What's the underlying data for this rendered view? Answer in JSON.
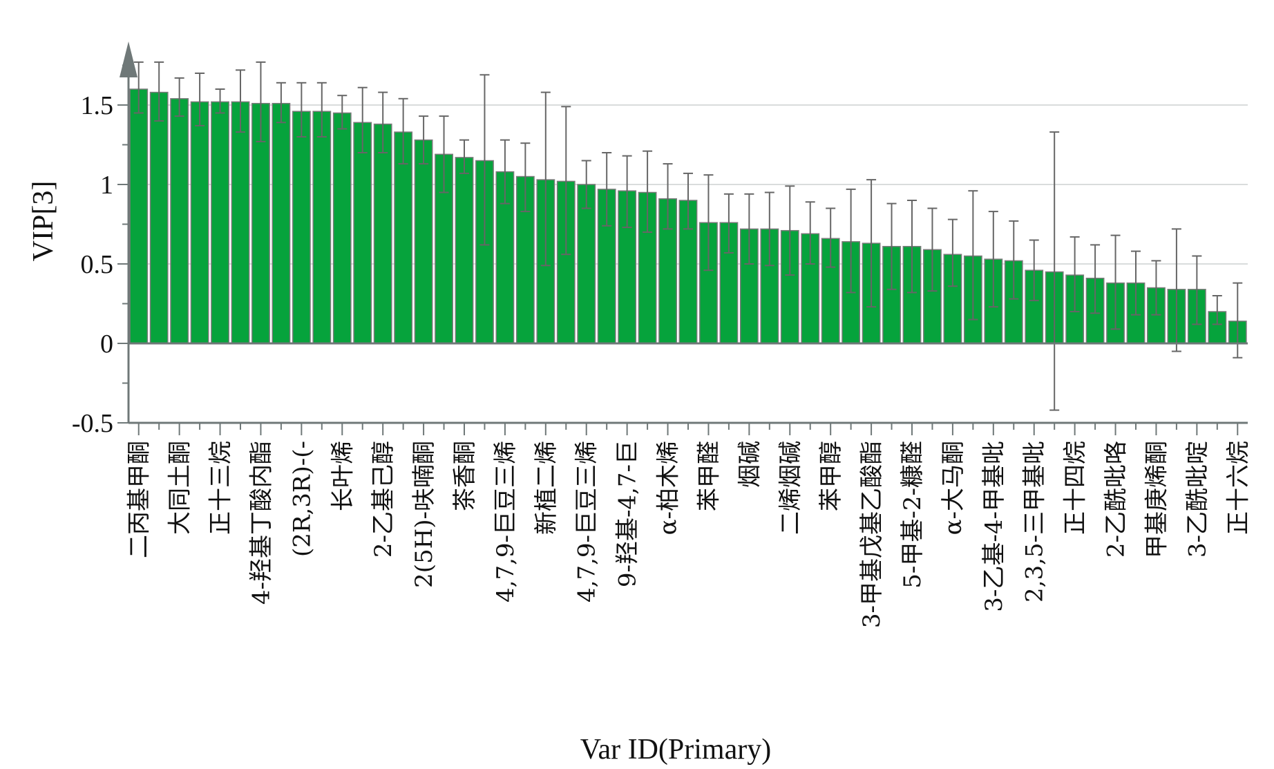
{
  "chart_data": {
    "type": "bar",
    "title": "",
    "xlabel": "Var ID(Primary)",
    "ylabel": "VIP[3]",
    "ylim": [
      -0.5,
      1.9
    ],
    "yticks": [
      -0.5,
      0,
      0.5,
      1,
      1.5
    ],
    "ytick_labels": [
      "-0.5",
      "0",
      "0.5",
      "1",
      "1.5"
    ],
    "grid": "horizontal",
    "bar_color": "#06a33c",
    "bar_edge_color": "#7a7a7a",
    "error_bar_color": "#666666",
    "categories": [
      "c1",
      "c2",
      "c3",
      "c4",
      "c5",
      "c6",
      "c7",
      "c8",
      "c9",
      "c10",
      "c11",
      "c12",
      "c13",
      "c14",
      "c15",
      "c16",
      "c17",
      "c18",
      "c19",
      "c20",
      "c21",
      "c22",
      "c23",
      "c24",
      "c25",
      "c26",
      "c27",
      "c28",
      "c29",
      "c30",
      "c31",
      "c32",
      "c33",
      "c34",
      "c35",
      "c36",
      "c37",
      "c38",
      "c39",
      "c40",
      "c41",
      "c42",
      "c43",
      "c44",
      "c45",
      "c46",
      "c47",
      "c48",
      "c49",
      "c50",
      "c51",
      "c52",
      "c53",
      "c54",
      "c55"
    ],
    "tick_labels": [
      "二丙基甲酮",
      "大同土酮",
      "正十三烷",
      "4-羟基丁酸内酯",
      "(2R,3R)-(-",
      "长叶烯",
      "2-乙基己醇",
      "2(5H)-呋喃酮",
      "茶香酮",
      "4,7,9-巨豆三烯",
      "新植二烯",
      "4,7,9-巨豆三烯",
      "9-羟基-4,7-巨",
      "α-柏木烯",
      "苯甲醛",
      "烟碱",
      "二烯烟碱",
      "苯甲醇",
      "3-甲基戊基乙酸酯",
      "5-甲基-2-糠醛",
      "α-大马酮",
      "3-乙基-4-甲基吡",
      "2,3,5-三甲基吡",
      "正十四烷",
      "2-乙酰吡咯",
      "甲基庚烯酮",
      "3-乙酰吡啶",
      "正十六烷"
    ],
    "values": [
      1.6,
      1.58,
      1.54,
      1.52,
      1.52,
      1.52,
      1.51,
      1.51,
      1.46,
      1.46,
      1.45,
      1.39,
      1.38,
      1.33,
      1.28,
      1.19,
      1.17,
      1.15,
      1.08,
      1.05,
      1.03,
      1.02,
      1.0,
      0.97,
      0.96,
      0.95,
      0.91,
      0.9,
      0.76,
      0.76,
      0.72,
      0.72,
      0.71,
      0.69,
      0.66,
      0.64,
      0.63,
      0.61,
      0.61,
      0.59,
      0.56,
      0.55,
      0.53,
      0.52,
      0.46,
      0.45,
      0.43,
      0.41,
      0.38,
      0.38,
      0.35,
      0.34,
      0.34,
      0.2,
      0.14
    ],
    "err_upper": [
      1.77,
      1.77,
      1.67,
      1.7,
      1.6,
      1.72,
      1.77,
      1.64,
      1.64,
      1.64,
      1.56,
      1.61,
      1.58,
      1.54,
      1.43,
      1.43,
      1.28,
      1.69,
      1.28,
      1.26,
      1.58,
      1.49,
      1.15,
      1.2,
      1.18,
      1.21,
      1.13,
      1.07,
      1.06,
      0.94,
      0.94,
      0.95,
      0.99,
      0.89,
      0.85,
      0.97,
      1.03,
      0.88,
      0.9,
      0.85,
      0.78,
      0.96,
      0.83,
      0.77,
      0.65,
      1.33,
      0.67,
      0.62,
      0.68,
      0.58,
      0.52,
      0.72,
      0.55,
      0.3,
      0.38
    ],
    "err_lower": [
      1.45,
      1.4,
      1.43,
      1.37,
      1.45,
      1.33,
      1.27,
      1.39,
      1.3,
      1.3,
      1.35,
      1.2,
      1.2,
      1.13,
      1.13,
      0.95,
      1.07,
      0.62,
      0.88,
      0.83,
      0.49,
      0.56,
      0.85,
      0.74,
      0.73,
      0.7,
      0.72,
      0.72,
      0.46,
      0.57,
      0.5,
      0.49,
      0.43,
      0.5,
      0.48,
      0.32,
      0.23,
      0.34,
      0.32,
      0.33,
      0.36,
      0.15,
      0.23,
      0.28,
      0.27,
      -0.42,
      0.2,
      0.19,
      0.09,
      0.18,
      0.18,
      -0.05,
      0.12,
      0.12,
      -0.09
    ]
  }
}
